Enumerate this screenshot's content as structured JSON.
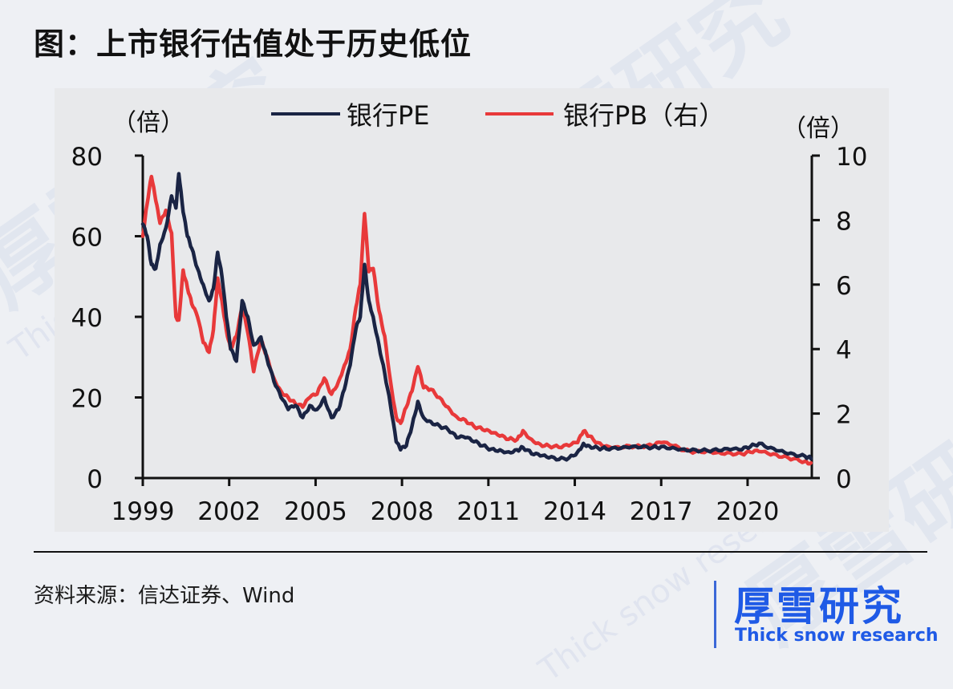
{
  "title": "图：上市银行估值处于历史低位",
  "source_text": "资料来源：信达证券、Wind",
  "brand": {
    "name_cn": "厚雪研究",
    "name_en": "Thick snow research",
    "color": "#1f5ae6"
  },
  "watermark": {
    "cn": "厚雪研究",
    "en": "Thick snow research"
  },
  "colors": {
    "pe": "#1a2444",
    "pb": "#e8393a",
    "axis": "#111111",
    "panel": "#e8e9eb",
    "page": "#eef0f4"
  },
  "chart_data": {
    "type": "line",
    "title": "上市银行估值处于历史低位",
    "xlabel": "",
    "ylabel": "(倍)",
    "ylabel_right": "(倍)",
    "legend": [
      "银行PE",
      "银行PB（右）"
    ],
    "legend_position": "top",
    "grid": false,
    "xlim": [
      1999,
      2022.2
    ],
    "x_ticks": [
      1999,
      2002,
      2005,
      2008,
      2011,
      2014,
      2017,
      2020
    ],
    "ylim": [
      0,
      80
    ],
    "y_ticks": [
      0,
      20,
      40,
      60,
      80
    ],
    "ylim_right": [
      0,
      10
    ],
    "y_ticks_right": [
      0,
      2,
      4,
      6,
      8,
      10
    ],
    "x": [
      1999.0,
      1999.15,
      1999.3,
      1999.45,
      1999.6,
      1999.8,
      2000.0,
      2000.15,
      2000.25,
      2000.4,
      2000.55,
      2000.7,
      2000.9,
      2001.1,
      2001.3,
      2001.45,
      2001.6,
      2001.75,
      2001.9,
      2002.05,
      2002.25,
      2002.45,
      2002.65,
      2002.85,
      2003.1,
      2003.3,
      2003.55,
      2003.8,
      2004.05,
      2004.3,
      2004.55,
      2004.8,
      2005.05,
      2005.3,
      2005.55,
      2005.8,
      2006.0,
      2006.2,
      2006.4,
      2006.55,
      2006.7,
      2006.85,
      2007.0,
      2007.2,
      2007.4,
      2007.6,
      2007.8,
      2007.95,
      2008.15,
      2008.35,
      2008.55,
      2008.75,
      2009.0,
      2009.3,
      2009.6,
      2009.9,
      2010.2,
      2010.5,
      2010.8,
      2011.1,
      2011.4,
      2011.7,
      2012.0,
      2012.2,
      2012.5,
      2012.8,
      2013.1,
      2013.45,
      2013.8,
      2014.1,
      2014.3,
      2014.5,
      2014.8,
      2015.1,
      2015.5,
      2015.9,
      2016.3,
      2016.7,
      2017.0,
      2017.4,
      2017.8,
      2018.2,
      2018.6,
      2019.0,
      2019.4,
      2019.8,
      2020.1,
      2020.4,
      2020.8,
      2021.2,
      2021.6,
      2022.0,
      2022.2
    ],
    "series": [
      {
        "name": "银行PE",
        "axis": "left",
        "values": [
          63,
          60,
          53,
          52,
          58,
          62,
          70,
          67,
          75.5,
          66,
          60,
          57,
          52,
          48,
          44,
          47,
          56,
          50,
          40,
          32,
          29,
          44,
          40,
          33,
          35,
          30,
          24,
          20,
          17,
          18,
          15,
          18,
          17,
          20,
          15,
          17,
          22,
          28,
          37,
          40,
          53,
          44,
          40,
          33,
          26,
          18,
          9,
          7,
          8,
          13,
          19,
          15,
          14,
          13,
          12,
          10,
          10,
          9,
          8,
          7.2,
          7,
          6.5,
          7,
          7.6,
          6,
          5.5,
          5,
          4.6,
          5,
          6.5,
          8.6,
          8,
          7.5,
          7.2,
          7.2,
          7.5,
          7.6,
          7.6,
          7.8,
          7.6,
          7.2,
          7.0,
          6.8,
          6.8,
          7.0,
          7.0,
          7.8,
          8.6,
          7.6,
          6.8,
          6.0,
          5.4,
          4.8
        ]
      },
      {
        "name": "银行PB（右）",
        "axis": "right",
        "values": [
          7.5,
          8.5,
          9.35,
          8.6,
          7.9,
          8.3,
          7.6,
          5.0,
          4.9,
          6.45,
          5.9,
          5.4,
          5.0,
          4.2,
          3.9,
          4.6,
          6.2,
          5.5,
          4.6,
          4.0,
          4.4,
          5.3,
          4.5,
          3.3,
          4.3,
          3.8,
          3.1,
          2.7,
          2.5,
          2.3,
          2.2,
          2.5,
          2.6,
          3.1,
          2.6,
          3.0,
          3.5,
          4.0,
          5.3,
          6.0,
          8.2,
          6.4,
          6.5,
          5.2,
          4.4,
          3.0,
          1.9,
          1.7,
          2.2,
          2.7,
          3.45,
          2.8,
          2.75,
          2.5,
          2.2,
          1.9,
          1.8,
          1.6,
          1.5,
          1.4,
          1.3,
          1.2,
          1.2,
          1.47,
          1.2,
          1.05,
          1.0,
          0.95,
          1.0,
          1.1,
          1.45,
          1.3,
          1.1,
          1.0,
          0.97,
          1.0,
          0.97,
          1.0,
          1.1,
          1.0,
          0.85,
          0.82,
          0.85,
          0.8,
          0.78,
          0.75,
          0.8,
          0.82,
          0.72,
          0.65,
          0.6,
          0.52,
          0.47
        ]
      }
    ]
  },
  "axis_labels": {
    "left_unit": "（倍）",
    "right_unit": "（倍）",
    "left_ticks": [
      "0",
      "20",
      "40",
      "60",
      "80"
    ],
    "right_ticks": [
      "0",
      "2",
      "4",
      "6",
      "8",
      "10"
    ],
    "x_ticks": [
      "1999",
      "2002",
      "2005",
      "2008",
      "2011",
      "2014",
      "2017",
      "2020"
    ]
  },
  "legend": {
    "pe_label": "银行PE",
    "pb_label": "银行PB（右）"
  }
}
